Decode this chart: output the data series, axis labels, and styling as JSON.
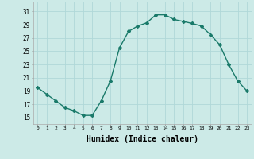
{
  "x": [
    0,
    1,
    2,
    3,
    4,
    5,
    6,
    7,
    8,
    9,
    10,
    11,
    12,
    13,
    14,
    15,
    16,
    17,
    18,
    19,
    20,
    21,
    22,
    23
  ],
  "y": [
    19.5,
    18.5,
    17.5,
    16.5,
    16.0,
    15.3,
    15.3,
    17.5,
    20.5,
    25.5,
    28.0,
    28.8,
    29.3,
    30.5,
    30.5,
    29.8,
    29.5,
    29.2,
    28.8,
    27.5,
    26.0,
    23.0,
    20.5,
    19.0
  ],
  "line_color": "#1a7a6a",
  "marker": "D",
  "markersize": 2.0,
  "linewidth": 1.0,
  "bg_color": "#cceae7",
  "grid_color": "#b0d8d8",
  "xlabel": "Humidex (Indice chaleur)",
  "xlabel_fontsize": 7,
  "ylabel_ticks": [
    15,
    17,
    19,
    21,
    23,
    25,
    27,
    29,
    31
  ],
  "xlim": [
    -0.5,
    23.5
  ],
  "ylim": [
    14.0,
    32.5
  ]
}
